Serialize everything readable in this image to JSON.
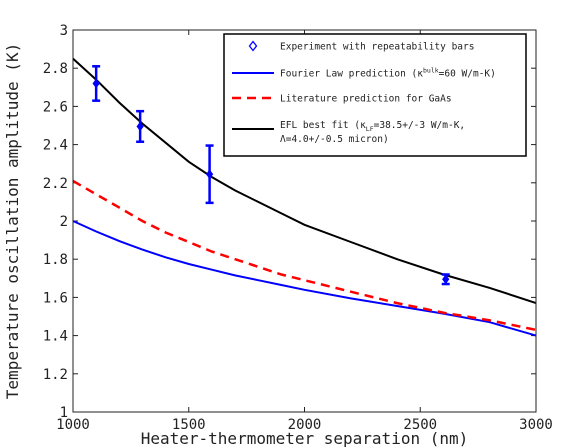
{
  "chart_data": {
    "type": "line",
    "xlabel": "Heater-thermometer separation (nm)",
    "ylabel": "Temperature oscillation amplitude (K)",
    "xlim": [
      1000,
      3000
    ],
    "ylim": [
      1,
      3
    ],
    "xticks": [
      1000,
      1500,
      2000,
      2500,
      3000
    ],
    "yticks": [
      1,
      1.2,
      1.4,
      1.6,
      1.8,
      2,
      2.2,
      2.4,
      2.6,
      2.8,
      3
    ],
    "legend_position": "top-right",
    "series": [
      {
        "name": "Experiment with repeatability bars",
        "kind": "errorbar",
        "color": "#0000ff",
        "marker": "diamond",
        "x": [
          1100,
          1290,
          1590,
          2610
        ],
        "y": [
          2.72,
          2.495,
          2.245,
          1.695
        ],
        "err": [
          0.09,
          0.08,
          0.15,
          0.025
        ]
      },
      {
        "name": "Fourier Law prediction",
        "name_suffix": "=60 W/m-K)",
        "name_kappa_label": "(κ",
        "name_kappa_sup": "bulk",
        "kind": "line",
        "color": "#0000ff",
        "dash": "solid",
        "x": [
          1000,
          1100,
          1200,
          1300,
          1400,
          1500,
          1600,
          1700,
          1800,
          1900,
          2000,
          2200,
          2400,
          2600,
          2800,
          3000
        ],
        "y": [
          2.0,
          1.945,
          1.895,
          1.85,
          1.81,
          1.775,
          1.745,
          1.715,
          1.69,
          1.665,
          1.64,
          1.595,
          1.555,
          1.515,
          1.47,
          1.4
        ]
      },
      {
        "name": "Literature prediction for GaAs",
        "kind": "line",
        "color": "#ff0000",
        "dash": "dashed",
        "x": [
          1000,
          1100,
          1200,
          1300,
          1400,
          1500,
          1600,
          1700,
          1800,
          1900,
          2000,
          2200,
          2400,
          2600,
          2800,
          3000
        ],
        "y": [
          2.21,
          2.14,
          2.07,
          2.0,
          1.94,
          1.89,
          1.84,
          1.8,
          1.76,
          1.72,
          1.69,
          1.63,
          1.57,
          1.52,
          1.48,
          1.43
        ]
      },
      {
        "name": "EFL best fit",
        "name_line1_prefix": "EFL best fit (κ",
        "name_line1_sub": "LF",
        "name_line1_suffix": "=38.5+/-3 W/m-K,",
        "name_line2": "Λ=4.0+/-0.5 micron)",
        "kind": "line",
        "color": "#000000",
        "dash": "solid",
        "x": [
          1000,
          1100,
          1200,
          1300,
          1400,
          1500,
          1600,
          1700,
          1800,
          1900,
          2000,
          2200,
          2400,
          2600,
          2800,
          3000
        ],
        "y": [
          2.85,
          2.74,
          2.62,
          2.51,
          2.41,
          2.31,
          2.23,
          2.16,
          2.1,
          2.04,
          1.98,
          1.89,
          1.8,
          1.72,
          1.65,
          1.57
        ]
      }
    ]
  }
}
